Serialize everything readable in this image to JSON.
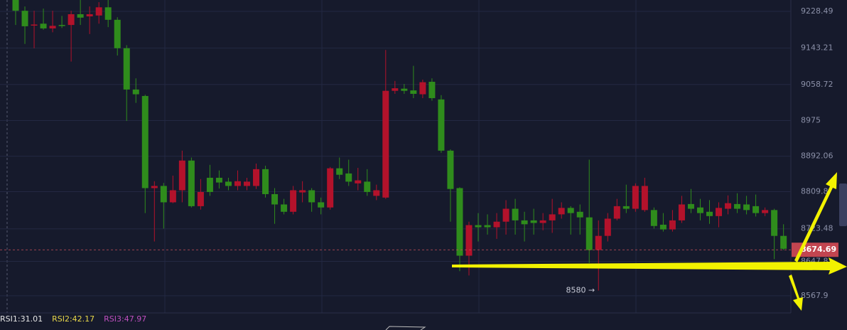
{
  "chart_data": {
    "type": "candlestick",
    "open": [
      9255,
      9230,
      9196,
      9200,
      9189,
      9197,
      9197,
      9222,
      9217,
      9219,
      9238,
      9209,
      9143,
      9047,
      9032,
      8818,
      8823,
      8785,
      8813,
      8882,
      8776,
      8842,
      8842,
      8833,
      8823,
      8823,
      8823,
      8862,
      8804,
      8780,
      8763,
      8808,
      8813,
      8785,
      8773,
      8864,
      8852,
      8829,
      8833,
      8800,
      8796,
      9044,
      9049,
      9045,
      9036,
      9065,
      9024,
      8905,
      8818,
      8661,
      8732,
      8732,
      8727,
      8740,
      8770,
      8743,
      8743,
      8737,
      8743,
      8757,
      8772,
      8763,
      8750,
      8674,
      8707,
      8747,
      8776,
      8770,
      8767,
      8767,
      8733,
      8722,
      8743,
      8781,
      8773,
      8763,
      8753,
      8770,
      8781,
      8780,
      8776,
      8760,
      8767,
      8707
    ],
    "high": [
      9255,
      9240,
      9230,
      9235,
      9230,
      9218,
      9230,
      9255,
      9240,
      9250,
      9255,
      9215,
      9150,
      9073,
      9035,
      8834,
      8830,
      8847,
      8905,
      8889,
      8839,
      8872,
      8859,
      8842,
      8859,
      8842,
      8875,
      8870,
      8818,
      8793,
      8823,
      8834,
      8818,
      8796,
      8867,
      8889,
      8884,
      8865,
      8862,
      8826,
      9139,
      9067,
      9060,
      9102,
      9070,
      9073,
      9034,
      8908,
      8820,
      8740,
      8760,
      8757,
      8760,
      8790,
      8793,
      8763,
      8770,
      8760,
      8793,
      8785,
      8776,
      8780,
      8884,
      8743,
      8760,
      8793,
      8826,
      8829,
      8842,
      8773,
      8760,
      8767,
      8800,
      8816,
      8793,
      8790,
      8785,
      8801,
      8806,
      8800,
      8803,
      8773,
      8770,
      8734
    ],
    "low": [
      9197,
      9153,
      9143,
      9186,
      9180,
      9190,
      9112,
      9197,
      9176,
      9200,
      9192,
      9126,
      8974,
      9016,
      8760,
      8694,
      8724,
      8783,
      8785,
      8773,
      8768,
      8800,
      8817,
      8813,
      8813,
      8813,
      8816,
      8796,
      8735,
      8757,
      8757,
      8785,
      8763,
      8757,
      8768,
      8839,
      8823,
      8813,
      8800,
      8790,
      8793,
      9037,
      9037,
      9027,
      9027,
      9021,
      8900,
      8740,
      8625,
      8615,
      8694,
      8710,
      8700,
      8710,
      8710,
      8694,
      8710,
      8720,
      8714,
      8747,
      8710,
      8710,
      8644,
      8580,
      8694,
      8743,
      8760,
      8763,
      8763,
      8724,
      8717,
      8717,
      8737,
      8760,
      8743,
      8735,
      8727,
      8757,
      8760,
      8757,
      8752,
      8753,
      8653,
      8674
    ],
    "close": [
      9230,
      9194,
      9198,
      9189,
      9195,
      9195,
      9222,
      9214,
      9222,
      9238,
      9209,
      9143,
      9047,
      9036,
      8818,
      8823,
      8785,
      8813,
      8882,
      8776,
      8809,
      8809,
      8831,
      8823,
      8834,
      8833,
      8862,
      8804,
      8780,
      8763,
      8813,
      8813,
      8785,
      8773,
      8864,
      8849,
      8833,
      8836,
      8809,
      8813,
      9044,
      9050,
      9044,
      9037,
      9064,
      9027,
      8905,
      8816,
      8661,
      8732,
      8727,
      8727,
      8740,
      8770,
      8743,
      8734,
      8737,
      8743,
      8757,
      8772,
      8760,
      8750,
      8674,
      8707,
      8747,
      8776,
      8770,
      8823,
      8823,
      8730,
      8722,
      8743,
      8780,
      8770,
      8760,
      8753,
      8772,
      8783,
      8770,
      8767,
      8760,
      8767,
      8707,
      8677
    ],
    "up_color": "#b3122b",
    "down_color": "#2f8c1c",
    "ylim": [
      8528,
      9255
    ],
    "yticks": [
      9228.49,
      9143.21,
      9058.72,
      8975.0,
      8892.06,
      8809.8,
      8723.48,
      8647.8,
      8567.9
    ],
    "grid": true,
    "current_price": 8674.69,
    "low_annotation": "8580 →",
    "indicators": [
      {
        "text": "RSI1:31.01",
        "color": "#e6e6e6"
      },
      {
        "text": "RSI2:42.17",
        "color": "#e8d84a"
      },
      {
        "text": "RSI3:47.97",
        "color": "#c04fc0"
      }
    ]
  }
}
